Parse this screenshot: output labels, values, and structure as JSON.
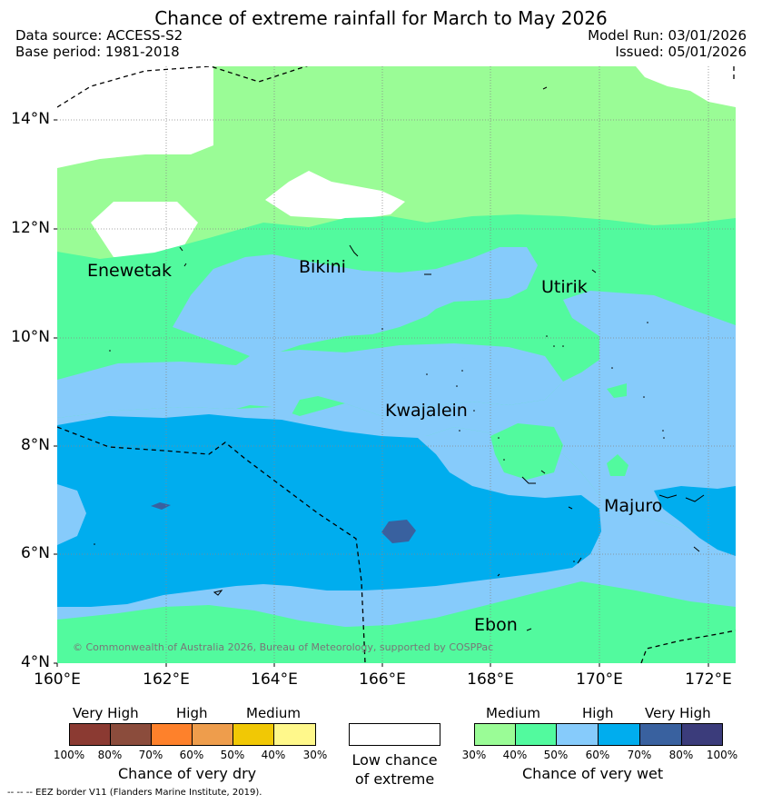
{
  "header": {
    "title": "Chance of extreme rainfall for March to May 2026",
    "data_source": "Data source: ACCESS-S2",
    "base_period": "Base period: 1981-2018",
    "model_run": "Model Run: 03/01/2026",
    "issued": "Issued: 05/01/2026"
  },
  "map": {
    "lat_labels": [
      "14°N",
      "12°N",
      "10°N",
      "8°N",
      "6°N",
      "4°N"
    ],
    "lon_labels": [
      "160°E",
      "162°E",
      "164°E",
      "166°E",
      "168°E",
      "170°E",
      "172°E"
    ],
    "places": {
      "enewetak": "Enewetak",
      "bikini": "Bikini",
      "utirik": "Utirik",
      "kwajalein": "Kwajalein",
      "majuro": "Majuro",
      "ebon": "Ebon"
    },
    "copyright": "© Commonwealth of Australia 2026, Bureau of Meteorology, supported by COSPPac",
    "colors": {
      "wet_30": "#9afc96",
      "wet_40": "#52fa9e",
      "wet_50": "#86cbfb",
      "wet_60": "#00adee",
      "wet_70": "#39619f",
      "wet_80": "#3b3c7b",
      "low": "#ffffff"
    }
  },
  "legend": {
    "dry": {
      "categories": [
        "Very High",
        "High",
        "Medium"
      ],
      "ticks": [
        "100%",
        "80%",
        "70%",
        "60%",
        "50%",
        "40%",
        "30%"
      ],
      "colors": [
        "#8b3a32",
        "#8b4c3c",
        "#fe812b",
        "#ee9d4c",
        "#f1c805",
        "#fff88b"
      ],
      "caption": "Chance of very dry"
    },
    "low": {
      "caption_line1": "Low chance",
      "caption_line2": "of extreme"
    },
    "wet": {
      "categories": [
        "Medium",
        "High",
        "Very High"
      ],
      "ticks": [
        "30%",
        "40%",
        "50%",
        "60%",
        "70%",
        "80%",
        "100%"
      ],
      "colors": [
        "#9afc96",
        "#52fa9e",
        "#86cbfb",
        "#00adee",
        "#39619f",
        "#3b3c7b"
      ],
      "caption": "Chance of very wet"
    }
  },
  "footer": {
    "eez": "--  --  -- EEZ border V11 (Flanders Marine Institute, 2019)."
  }
}
